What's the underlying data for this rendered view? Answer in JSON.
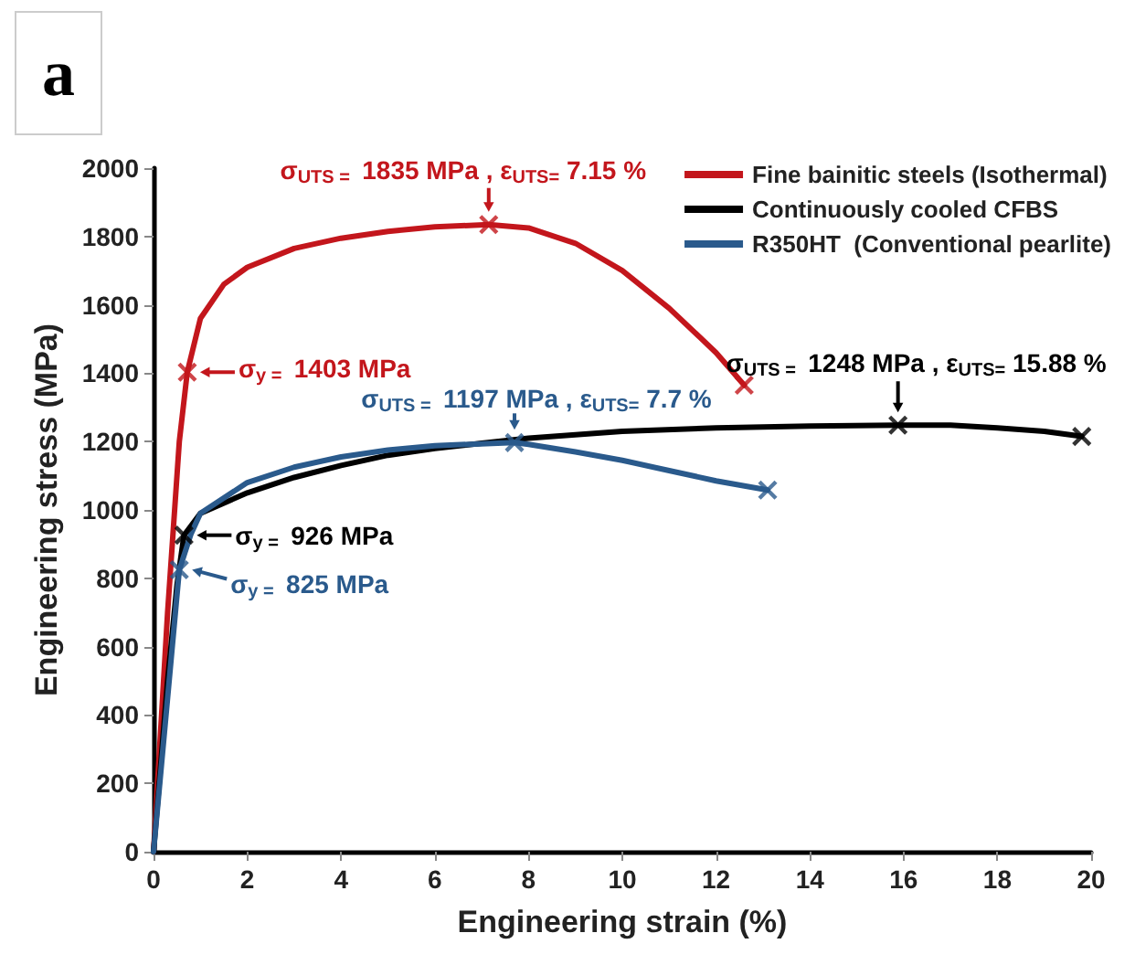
{
  "chart_data": {
    "type": "line",
    "xlabel": "Engineering strain (%)",
    "ylabel": "Engineering stress (MPa)",
    "xlim": [
      0,
      20
    ],
    "xticks": [
      0,
      2,
      4,
      6,
      8,
      10,
      12,
      14,
      16,
      18,
      20
    ],
    "ylim": [
      0,
      2000
    ],
    "yticks": [
      0,
      200,
      400,
      600,
      800,
      1000,
      1200,
      1400,
      1600,
      1800,
      2000
    ],
    "grid": false,
    "legend": "top right",
    "marker": "none",
    "line_style": "solid",
    "series": [
      {
        "name": "Fine bainitic steels (Isothermal)",
        "color": "#c3161c",
        "x": [
          0,
          0.3,
          0.55,
          0.72,
          1,
          1.5,
          2,
          3,
          4,
          5,
          6,
          7.15,
          8,
          9,
          10,
          11,
          12,
          12.6
        ],
        "values": [
          0,
          700,
          1200,
          1403,
          1560,
          1660,
          1710,
          1765,
          1795,
          1815,
          1828,
          1835,
          1825,
          1780,
          1700,
          1590,
          1460,
          1365
        ]
      },
      {
        "name": "Continuously cooled CFBS",
        "color": "#000000",
        "x": [
          0,
          0.3,
          0.5,
          0.65,
          1,
          2,
          3,
          4,
          5,
          6,
          7,
          8,
          10,
          12,
          14,
          15.88,
          17,
          18,
          19,
          19.8
        ],
        "values": [
          0,
          500,
          780,
          926,
          990,
          1050,
          1095,
          1130,
          1160,
          1180,
          1195,
          1210,
          1230,
          1240,
          1245,
          1248,
          1248,
          1240,
          1230,
          1215
        ]
      },
      {
        "name": "R350HT  (Conventional pearlite)",
        "color": "#2a5a8c",
        "x": [
          0,
          0.3,
          0.55,
          0.8,
          1,
          2,
          3,
          4,
          5,
          6,
          7.7,
          8,
          9,
          10,
          11,
          12,
          13.1
        ],
        "values": [
          0,
          450,
          825,
          930,
          990,
          1080,
          1125,
          1155,
          1175,
          1188,
          1197,
          1192,
          1170,
          1145,
          1115,
          1085,
          1058
        ]
      },
      {
        "type": "scatter",
        "marker": "cross",
        "color": "#c3161c",
        "x": [
          0.72,
          7.15,
          12.6
        ],
        "values": [
          1403,
          1835,
          1365
        ]
      },
      {
        "type": "scatter",
        "marker": "cross",
        "color": "#000000",
        "x": [
          0.65,
          15.88,
          19.8
        ],
        "values": [
          926,
          1248,
          1215
        ]
      },
      {
        "type": "scatter",
        "marker": "cross",
        "color": "#2a5a8c",
        "x": [
          0.55,
          7.7,
          13.1
        ],
        "values": [
          825,
          1197,
          1058
        ]
      }
    ],
    "annotations": [
      "a",
      {
        "text": "σ$_{UTS = }$ 1835 MPa , ε$_{UTS=}$ 7.15 %",
        "x": 7.15,
        "y": 1835
      },
      {
        "text": "σ$_{y = }$ 1403 MPa",
        "x": 0.72,
        "y": 1403
      },
      {
        "text": "σ$_{UTS = }$ 1197 MPa , ε$_{UTS=}$ 7.7 %",
        "x": 7.7,
        "y": 1197
      },
      {
        "text": "σ$_{UTS = }$ 1248 MPa , ε$_{UTS=}$ 15.88 %",
        "x": 15.88,
        "y": 1248
      },
      {
        "text": "σ$_{y = }$ 926 MPa",
        "x": 0.65,
        "y": 926
      },
      {
        "text": "σ$_{y = }$ 825 MPa",
        "x": 0.55,
        "y": 825
      }
    ]
  }
}
